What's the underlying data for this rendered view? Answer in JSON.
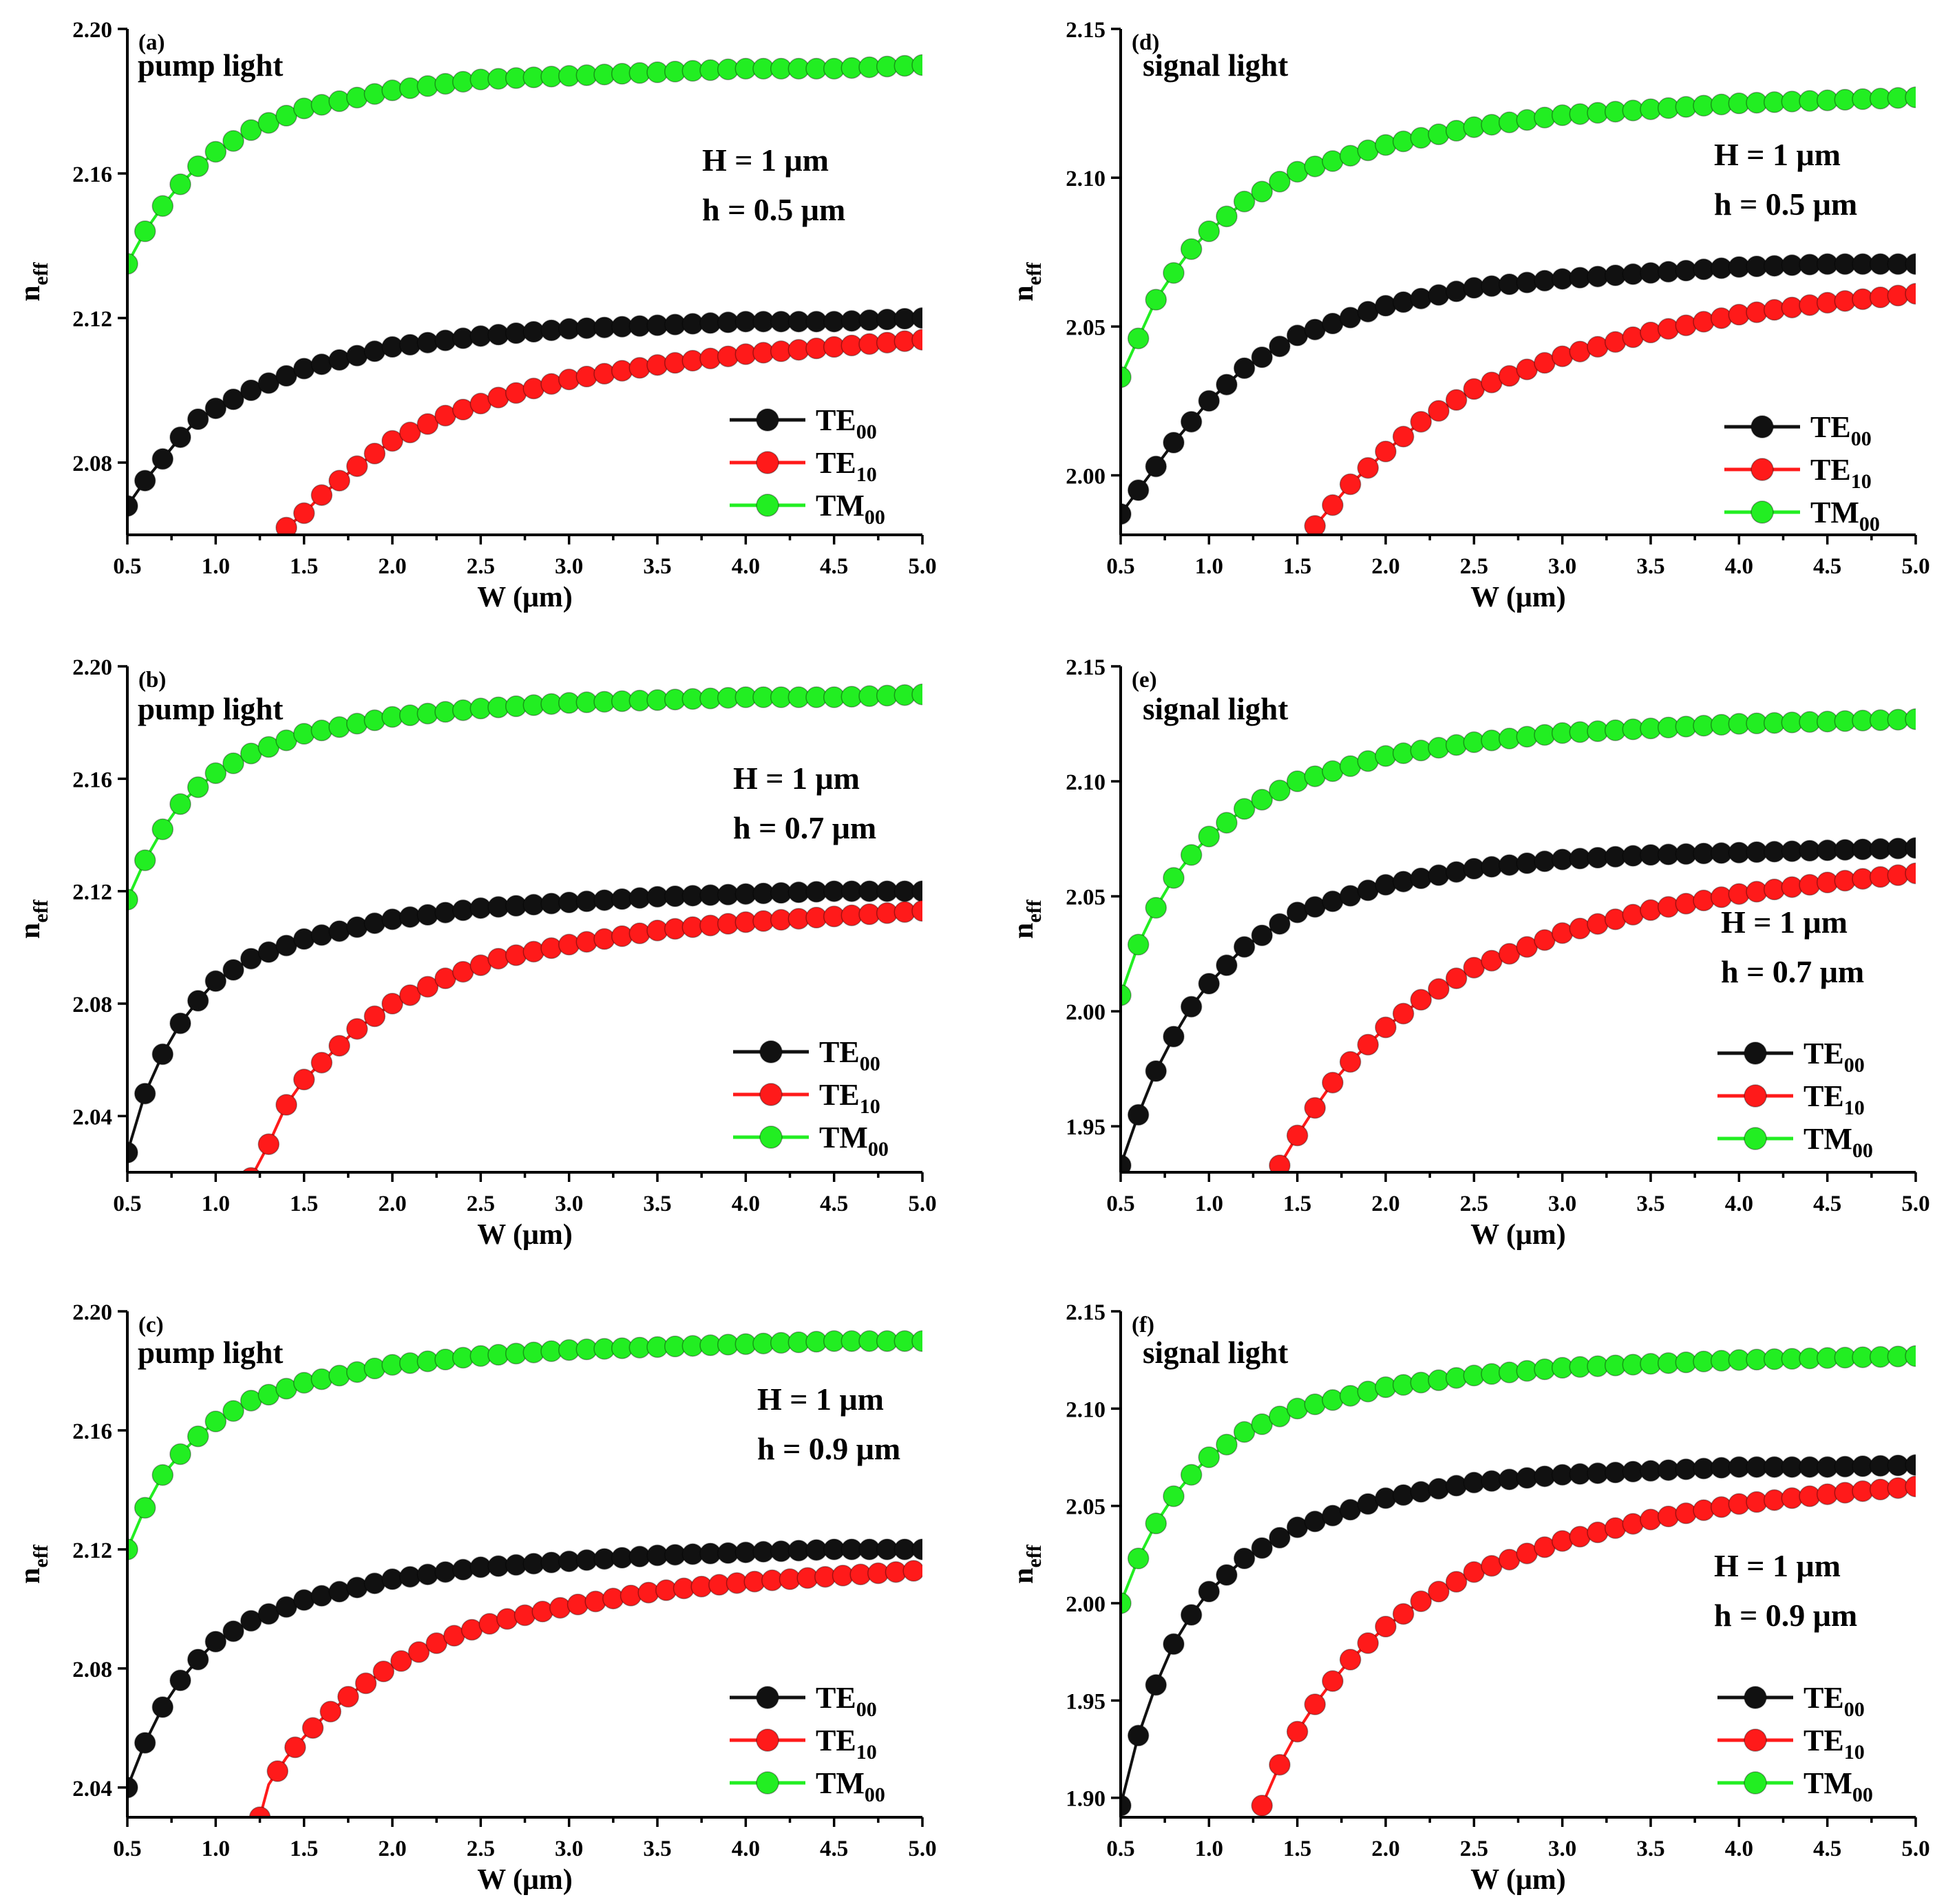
{
  "colors": {
    "TE00": "#111111",
    "TE10": "#ff1a1a",
    "TM00": "#22ee22"
  },
  "chart_data": [
    {
      "type": "line",
      "panel": "(a)",
      "title": "pump light",
      "params": [
        "H = 1 μm",
        "h = 0.5 μm"
      ],
      "xlabel": "W (μm)",
      "ylabel": "n",
      "ylabel_sub": "eff",
      "xlim": [
        0.5,
        5.0
      ],
      "ylim": [
        2.06,
        2.2
      ],
      "xticks": [
        "0.5",
        "1.0",
        "1.5",
        "2.0",
        "2.5",
        "3.0",
        "3.5",
        "4.0",
        "4.5",
        "5.0"
      ],
      "yticks": [
        "2.08",
        "2.12",
        "2.16",
        "2.20"
      ],
      "legend": [
        {
          "key": "TE00",
          "base": "TE",
          "sub": "00"
        },
        {
          "key": "TE10",
          "base": "TE",
          "sub": "10"
        },
        {
          "key": "TM00",
          "base": "TM",
          "sub": "00"
        }
      ],
      "series": [
        {
          "name": "TE00",
          "W": [
            0.5,
            0.6,
            0.7,
            0.8,
            0.9,
            1.0,
            1.2,
            1.5,
            2.0,
            2.5,
            3.0,
            3.5,
            4.0,
            4.5,
            5.0
          ],
          "n": [
            2.068,
            2.075,
            2.081,
            2.087,
            2.092,
            2.095,
            2.1,
            2.106,
            2.112,
            2.115,
            2.117,
            2.118,
            2.119,
            2.119,
            2.12
          ]
        },
        {
          "name": "TE10",
          "W": [
            1.4,
            1.5,
            1.6,
            1.8,
            2.0,
            2.3,
            2.6,
            3.0,
            3.5,
            4.0,
            4.5,
            5.0
          ],
          "n": [
            2.062,
            2.066,
            2.071,
            2.079,
            2.086,
            2.093,
            2.098,
            2.103,
            2.107,
            2.11,
            2.112,
            2.114
          ]
        },
        {
          "name": "TM00",
          "W": [
            0.5,
            0.6,
            0.7,
            0.8,
            0.9,
            1.0,
            1.2,
            1.5,
            2.0,
            2.5,
            3.0,
            3.5,
            4.0,
            4.5,
            5.0
          ],
          "n": [
            2.135,
            2.144,
            2.151,
            2.157,
            2.162,
            2.166,
            2.172,
            2.178,
            2.183,
            2.186,
            2.187,
            2.188,
            2.189,
            2.189,
            2.19
          ]
        }
      ]
    },
    {
      "type": "line",
      "panel": "(b)",
      "title": "pump light",
      "params": [
        "H = 1 μm",
        "h = 0.7 μm"
      ],
      "xlabel": "W (μm)",
      "ylabel": "n",
      "ylabel_sub": "eff",
      "xlim": [
        0.5,
        5.0
      ],
      "ylim": [
        2.02,
        2.2
      ],
      "xticks": [
        "0.5",
        "1.0",
        "1.5",
        "2.0",
        "2.5",
        "3.0",
        "3.5",
        "4.0",
        "4.5",
        "5.0"
      ],
      "yticks": [
        "2.04",
        "2.08",
        "2.12",
        "2.16",
        "2.20"
      ],
      "legend": [
        {
          "key": "TE00",
          "base": "TE",
          "sub": "00"
        },
        {
          "key": "TE10",
          "base": "TE",
          "sub": "10"
        },
        {
          "key": "TM00",
          "base": "TM",
          "sub": "00"
        }
      ],
      "series": [
        {
          "name": "TE00",
          "W": [
            0.5,
            0.6,
            0.7,
            0.8,
            0.9,
            1.0,
            1.2,
            1.5,
            2.0,
            2.5,
            3.0,
            3.5,
            4.0,
            4.5,
            5.0
          ],
          "n": [
            2.027,
            2.048,
            2.062,
            2.073,
            2.081,
            2.088,
            2.096,
            2.103,
            2.11,
            2.114,
            2.116,
            2.118,
            2.119,
            2.12,
            2.12
          ]
        },
        {
          "name": "TE10",
          "W": [
            1.2,
            1.3,
            1.4,
            1.5,
            1.6,
            1.8,
            2.0,
            2.3,
            2.6,
            3.0,
            3.5,
            4.0,
            4.5,
            5.0
          ],
          "n": [
            2.018,
            2.03,
            2.044,
            2.053,
            2.059,
            2.071,
            2.08,
            2.089,
            2.096,
            2.101,
            2.106,
            2.109,
            2.111,
            2.113
          ]
        },
        {
          "name": "TM00",
          "W": [
            0.5,
            0.6,
            0.7,
            0.8,
            0.9,
            1.0,
            1.2,
            1.5,
            2.0,
            2.5,
            3.0,
            3.5,
            4.0,
            4.5,
            5.0
          ],
          "n": [
            2.117,
            2.131,
            2.142,
            2.151,
            2.157,
            2.162,
            2.169,
            2.176,
            2.182,
            2.185,
            2.187,
            2.188,
            2.189,
            2.189,
            2.19
          ]
        }
      ]
    },
    {
      "type": "line",
      "panel": "(c)",
      "title": "pump light",
      "params": [
        "H = 1 μm",
        "h = 0.9 μm"
      ],
      "xlabel": "W (μm)",
      "ylabel": "n",
      "ylabel_sub": "eff",
      "xlim": [
        0.5,
        5.0
      ],
      "ylim": [
        2.03,
        2.2
      ],
      "xticks": [
        "0.5",
        "1.0",
        "1.5",
        "2.0",
        "2.5",
        "3.0",
        "3.5",
        "4.0",
        "4.5",
        "5.0"
      ],
      "yticks": [
        "2.04",
        "2.08",
        "2.12",
        "2.16",
        "2.20"
      ],
      "legend": [
        {
          "key": "TE00",
          "base": "TE",
          "sub": "00"
        },
        {
          "key": "TE10",
          "base": "TE",
          "sub": "10"
        },
        {
          "key": "TM00",
          "base": "TM",
          "sub": "00"
        }
      ],
      "series": [
        {
          "name": "TE00",
          "W": [
            0.5,
            0.6,
            0.7,
            0.8,
            0.9,
            1.0,
            1.2,
            1.5,
            2.0,
            2.5,
            3.0,
            3.5,
            4.0,
            4.5,
            5.0
          ],
          "n": [
            2.04,
            2.055,
            2.067,
            2.076,
            2.083,
            2.089,
            2.096,
            2.103,
            2.11,
            2.114,
            2.116,
            2.118,
            2.119,
            2.12,
            2.12
          ]
        },
        {
          "name": "TE10",
          "W": [
            1.25,
            1.3,
            1.4,
            1.5,
            1.6,
            1.8,
            2.0,
            2.3,
            2.6,
            3.0,
            3.5,
            4.0,
            4.5,
            5.0
          ],
          "n": [
            2.03,
            2.041,
            2.05,
            2.057,
            2.063,
            2.073,
            2.081,
            2.09,
            2.096,
            2.101,
            2.106,
            2.109,
            2.111,
            2.113
          ]
        },
        {
          "name": "TM00",
          "W": [
            0.5,
            0.6,
            0.7,
            0.8,
            0.9,
            1.0,
            1.2,
            1.5,
            2.0,
            2.5,
            3.0,
            3.5,
            4.0,
            4.5,
            5.0
          ],
          "n": [
            2.12,
            2.134,
            2.145,
            2.152,
            2.158,
            2.163,
            2.17,
            2.176,
            2.182,
            2.185,
            2.187,
            2.188,
            2.189,
            2.19,
            2.19
          ]
        }
      ]
    },
    {
      "type": "line",
      "panel": "(d)",
      "title": "signal light",
      "params": [
        "H = 1 μm",
        "h = 0.5 μm"
      ],
      "xlabel": "W (μm)",
      "ylabel": "n",
      "ylabel_sub": "eff",
      "xlim": [
        0.5,
        5.0
      ],
      "ylim": [
        1.98,
        2.15
      ],
      "xticks": [
        "0.5",
        "1.0",
        "1.5",
        "2.0",
        "2.5",
        "3.0",
        "3.5",
        "4.0",
        "4.5",
        "5.0"
      ],
      "yticks": [
        "2.00",
        "2.05",
        "2.10",
        "2.15"
      ],
      "legend": [
        {
          "key": "TE00",
          "base": "TE",
          "sub": "00"
        },
        {
          "key": "TE10",
          "base": "TE",
          "sub": "10"
        },
        {
          "key": "TM00",
          "base": "TM",
          "sub": "00"
        }
      ],
      "series": [
        {
          "name": "TE00",
          "W": [
            0.5,
            0.6,
            0.7,
            0.8,
            0.9,
            1.0,
            1.2,
            1.5,
            2.0,
            2.5,
            3.0,
            3.5,
            4.0,
            4.5,
            5.0
          ],
          "n": [
            1.987,
            1.995,
            2.003,
            2.011,
            2.018,
            2.025,
            2.036,
            2.047,
            2.057,
            2.063,
            2.066,
            2.068,
            2.07,
            2.071,
            2.071
          ]
        },
        {
          "name": "TE10",
          "W": [
            1.6,
            1.7,
            1.8,
            2.0,
            2.2,
            2.5,
            3.0,
            3.5,
            4.0,
            4.5,
            5.0
          ],
          "n": [
            1.983,
            1.99,
            1.997,
            2.008,
            2.018,
            2.029,
            2.04,
            2.048,
            2.054,
            2.058,
            2.061
          ]
        },
        {
          "name": "TM00",
          "W": [
            0.5,
            0.6,
            0.7,
            0.8,
            0.9,
            1.0,
            1.2,
            1.5,
            2.0,
            2.5,
            3.0,
            3.5,
            4.0,
            4.5,
            5.0
          ],
          "n": [
            2.033,
            2.046,
            2.059,
            2.068,
            2.076,
            2.082,
            2.092,
            2.102,
            2.111,
            2.117,
            2.121,
            2.123,
            2.125,
            2.126,
            2.127
          ]
        }
      ]
    },
    {
      "type": "line",
      "panel": "(e)",
      "title": "signal light",
      "params": [
        "H = 1 μm",
        "h = 0.7 μm"
      ],
      "xlabel": "W (μm)",
      "ylabel": "n",
      "ylabel_sub": "eff",
      "xlim": [
        0.5,
        5.0
      ],
      "ylim": [
        1.93,
        2.15
      ],
      "xticks": [
        "0.5",
        "1.0",
        "1.5",
        "2.0",
        "2.5",
        "3.0",
        "3.5",
        "4.0",
        "4.5",
        "5.0"
      ],
      "yticks": [
        "1.95",
        "2.00",
        "2.05",
        "2.10",
        "2.15"
      ],
      "legend": [
        {
          "key": "TE00",
          "base": "TE",
          "sub": "00"
        },
        {
          "key": "TE10",
          "base": "TE",
          "sub": "10"
        },
        {
          "key": "TM00",
          "base": "TM",
          "sub": "00"
        }
      ],
      "series": [
        {
          "name": "TE00",
          "W": [
            0.5,
            0.6,
            0.7,
            0.8,
            0.9,
            1.0,
            1.2,
            1.5,
            2.0,
            2.5,
            3.0,
            3.5,
            4.0,
            4.5,
            5.0
          ],
          "n": [
            1.933,
            1.955,
            1.974,
            1.989,
            2.002,
            2.012,
            2.028,
            2.043,
            2.055,
            2.062,
            2.066,
            2.068,
            2.069,
            2.07,
            2.071
          ]
        },
        {
          "name": "TE10",
          "W": [
            1.4,
            1.5,
            1.6,
            1.7,
            1.8,
            2.0,
            2.2,
            2.5,
            3.0,
            3.5,
            4.0,
            4.5,
            5.0
          ],
          "n": [
            1.933,
            1.946,
            1.958,
            1.969,
            1.978,
            1.993,
            2.005,
            2.019,
            2.034,
            2.044,
            2.051,
            2.056,
            2.06
          ]
        },
        {
          "name": "TM00",
          "W": [
            0.5,
            0.6,
            0.7,
            0.8,
            0.9,
            1.0,
            1.2,
            1.5,
            2.0,
            2.5,
            3.0,
            3.5,
            4.0,
            4.5,
            5.0
          ],
          "n": [
            2.007,
            2.029,
            2.045,
            2.058,
            2.068,
            2.076,
            2.088,
            2.1,
            2.111,
            2.117,
            2.121,
            2.123,
            2.125,
            2.126,
            2.127
          ]
        }
      ]
    },
    {
      "type": "line",
      "panel": "(f)",
      "title": "signal light",
      "params": [
        "H = 1 μm",
        "h = 0.9 μm"
      ],
      "xlabel": "W (μm)",
      "ylabel": "n",
      "ylabel_sub": "eff",
      "xlim": [
        0.5,
        5.0
      ],
      "ylim": [
        1.89,
        2.15
      ],
      "xticks": [
        "0.5",
        "1.0",
        "1.5",
        "2.0",
        "2.5",
        "3.0",
        "3.5",
        "4.0",
        "4.5",
        "5.0"
      ],
      "yticks": [
        "1.90",
        "1.95",
        "2.00",
        "2.05",
        "2.10",
        "2.15"
      ],
      "legend": [
        {
          "key": "TE00",
          "base": "TE",
          "sub": "00"
        },
        {
          "key": "TE10",
          "base": "TE",
          "sub": "10"
        },
        {
          "key": "TM00",
          "base": "TM",
          "sub": "00"
        }
      ],
      "series": [
        {
          "name": "TE00",
          "W": [
            0.5,
            0.6,
            0.7,
            0.8,
            0.9,
            1.0,
            1.2,
            1.5,
            2.0,
            2.5,
            3.0,
            3.5,
            4.0,
            4.5,
            5.0
          ],
          "n": [
            1.896,
            1.932,
            1.958,
            1.979,
            1.994,
            2.006,
            2.023,
            2.039,
            2.054,
            2.062,
            2.066,
            2.068,
            2.07,
            2.07,
            2.071
          ]
        },
        {
          "name": "TE10",
          "W": [
            1.3,
            1.4,
            1.5,
            1.6,
            1.7,
            1.8,
            2.0,
            2.2,
            2.5,
            3.0,
            3.5,
            4.0,
            4.5,
            5.0
          ],
          "n": [
            1.896,
            1.917,
            1.934,
            1.948,
            1.96,
            1.971,
            1.988,
            2.001,
            2.016,
            2.032,
            2.043,
            2.051,
            2.056,
            2.06
          ]
        },
        {
          "name": "TM00",
          "W": [
            0.5,
            0.6,
            0.7,
            0.8,
            0.9,
            1.0,
            1.2,
            1.5,
            2.0,
            2.5,
            3.0,
            3.5,
            4.0,
            4.5,
            5.0
          ],
          "n": [
            2.0,
            2.023,
            2.041,
            2.055,
            2.066,
            2.075,
            2.088,
            2.1,
            2.111,
            2.117,
            2.121,
            2.123,
            2.125,
            2.126,
            2.127
          ]
        }
      ]
    }
  ]
}
